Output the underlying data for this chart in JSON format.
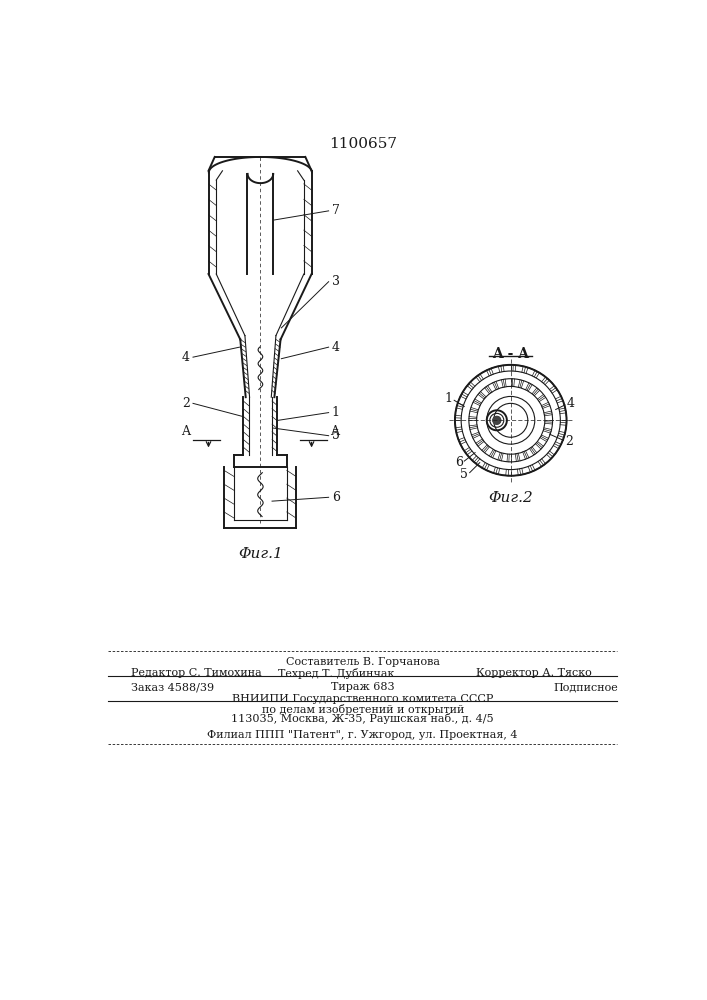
{
  "patent_number": "1100657",
  "background_color": "#ffffff",
  "fig1_caption": "Φиг.1",
  "fig2_caption": "Φиг.2",
  "fig2_title": "A - A",
  "footer_line0_center": "Составитель В. Горчанова",
  "footer_line1_left": "Редактор С. Тимохина",
  "footer_line1_center": "Техред Т. Дубинчак",
  "footer_line1_right": "Корректор А. Тяско",
  "footer_line2_left": "Заказ 4588/39",
  "footer_line2_center": "Тираж 683",
  "footer_line2_right": "Подписное",
  "footer_line3": "ВНИИПИ Государственного комитета СССР",
  "footer_line4": "по делам изобретений и открытий",
  "footer_line5": "113035, Москва, Ж-35, Раушская наб., д. 4/5",
  "footer_line6": "Филиал ППП \"Патент\", г. Ужгород, ул. Проектная, 4"
}
